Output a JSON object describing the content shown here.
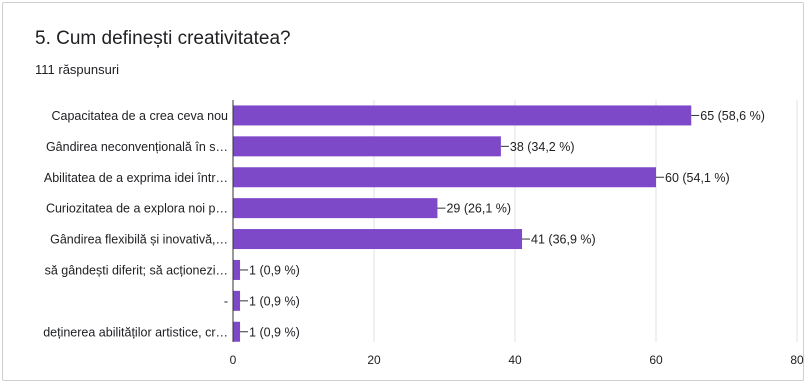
{
  "question": {
    "title": "5. Cum definești creativitatea?",
    "responses": "111 răspunsuri"
  },
  "colors": {
    "bar": "#7e49c9",
    "axis": "#333333",
    "grid": "#e0e0e0",
    "text": "#202124"
  },
  "chart_data": {
    "type": "bar",
    "orientation": "horizontal",
    "categories": [
      "Capacitatea de a crea ceva nou",
      "Gândirea neconvențională în s…",
      "Abilitatea de a exprima idei într…",
      "Curiozitatea de a explora noi p…",
      "Gândirea flexibilă și inovativă,…",
      "să gândești diferit; să acționezi…",
      "-",
      "deținerea abilităților artistice, cr…"
    ],
    "values": [
      65,
      38,
      60,
      29,
      41,
      1,
      1,
      1
    ],
    "data_labels": [
      "65 (58,6 %)",
      "38 (34,2 %)",
      "60 (54,1 %)",
      "29 (26,1 %)",
      "41 (36,9 %)",
      "1 (0,9 %)",
      "1 (0,9 %)",
      "1 (0,9 %)"
    ],
    "xlim": [
      0,
      80
    ],
    "x_ticks": [
      "0",
      "20",
      "40",
      "60",
      "80"
    ],
    "grid": true
  }
}
